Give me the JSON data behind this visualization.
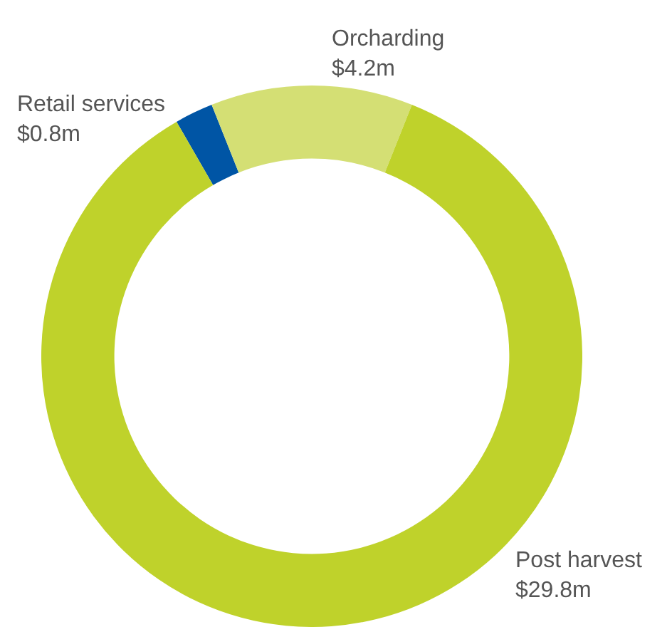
{
  "chart_data": {
    "type": "donut",
    "categories": [
      "Retail services",
      "Orcharding",
      "Post harvest"
    ],
    "values": [
      0.8,
      4.2,
      29.8
    ],
    "colors": [
      "#0055a5",
      "#d4df74",
      "#bfd22b"
    ],
    "value_labels": [
      "$0.8m",
      "$4.2m",
      "$29.8m"
    ],
    "legend": false
  }
}
